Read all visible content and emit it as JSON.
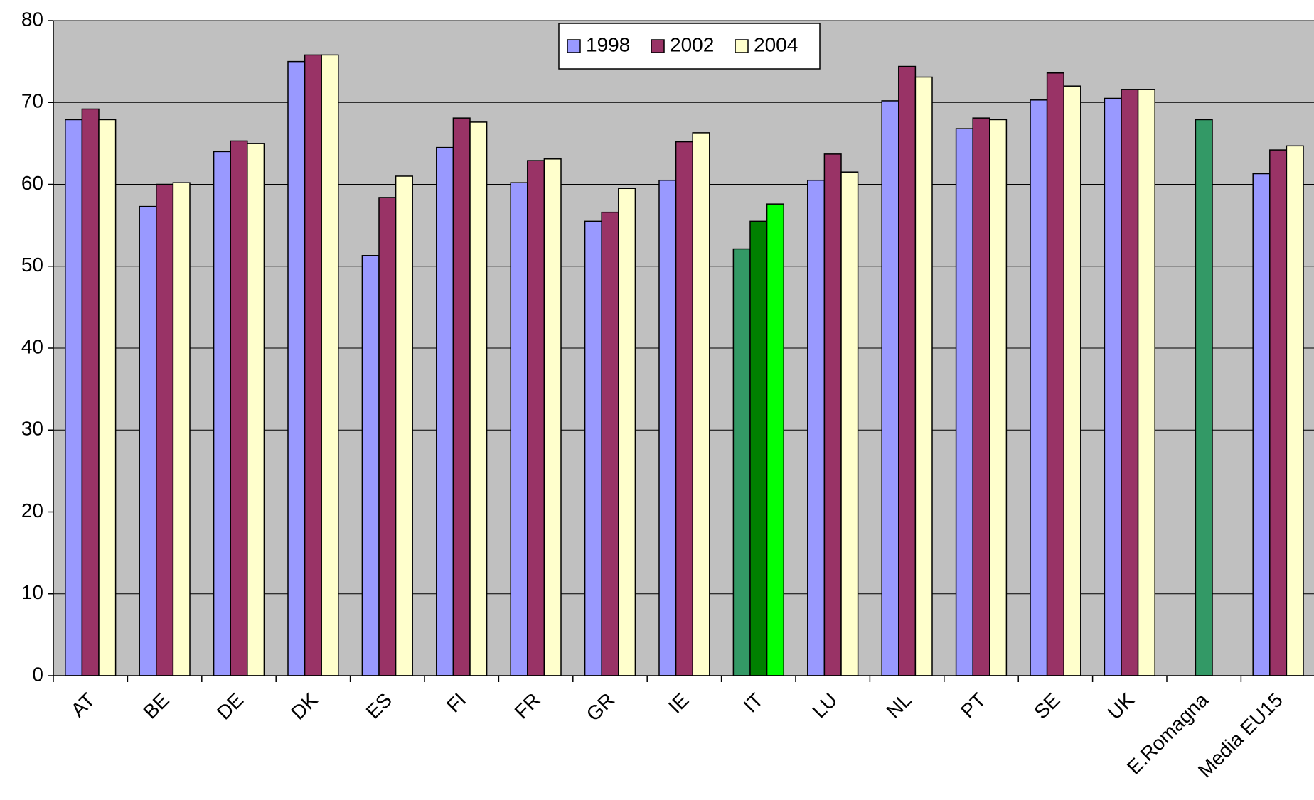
{
  "chart_data": {
    "type": "bar",
    "categories": [
      "AT",
      "BE",
      "DE",
      "DK",
      "ES",
      "FI",
      "FR",
      "GR",
      "IE",
      "IT",
      "LU",
      "NL",
      "PT",
      "SE",
      "UK",
      "E.Romagna",
      "Media EU15"
    ],
    "series": [
      {
        "name": "1998",
        "color": "#9999ff",
        "values": [
          67.9,
          57.3,
          64.0,
          75.0,
          51.3,
          64.5,
          60.2,
          55.5,
          60.5,
          52.1,
          60.5,
          70.2,
          66.8,
          70.3,
          70.5,
          null,
          61.3
        ],
        "colors": [
          "#9999ff",
          "#9999ff",
          "#9999ff",
          "#9999ff",
          "#9999ff",
          "#9999ff",
          "#9999ff",
          "#9999ff",
          "#9999ff",
          "#339966",
          "#9999ff",
          "#9999ff",
          "#9999ff",
          "#9999ff",
          "#9999ff",
          null,
          "#9999ff"
        ]
      },
      {
        "name": "2002",
        "color": "#993366",
        "values": [
          69.2,
          60.0,
          65.3,
          75.8,
          58.4,
          68.1,
          62.9,
          56.6,
          65.2,
          55.5,
          63.7,
          74.4,
          68.1,
          73.6,
          71.6,
          67.9,
          64.2
        ],
        "colors": [
          "#993366",
          "#993366",
          "#993366",
          "#993366",
          "#993366",
          "#993366",
          "#993366",
          "#993366",
          "#993366",
          "#008000",
          "#993366",
          "#993366",
          "#993366",
          "#993366",
          "#993366",
          "#339966",
          "#993366"
        ]
      },
      {
        "name": "2004",
        "color": "#ffffcc",
        "values": [
          67.9,
          60.2,
          65.0,
          75.8,
          61.0,
          67.6,
          63.1,
          59.5,
          66.3,
          57.6,
          61.5,
          73.1,
          67.9,
          72.0,
          71.6,
          null,
          64.7
        ],
        "colors": [
          "#ffffcc",
          "#ffffcc",
          "#ffffcc",
          "#ffffcc",
          "#ffffcc",
          "#ffffcc",
          "#ffffcc",
          "#ffffcc",
          "#ffffcc",
          "#00ff00",
          "#ffffcc",
          "#ffffcc",
          "#ffffcc",
          "#ffffcc",
          "#ffffcc",
          null,
          "#ffffcc"
        ]
      }
    ],
    "ylim": [
      0,
      80
    ],
    "yticks": [
      0,
      10,
      20,
      30,
      40,
      50,
      60,
      70,
      80
    ],
    "grid": true,
    "legend": "top"
  }
}
